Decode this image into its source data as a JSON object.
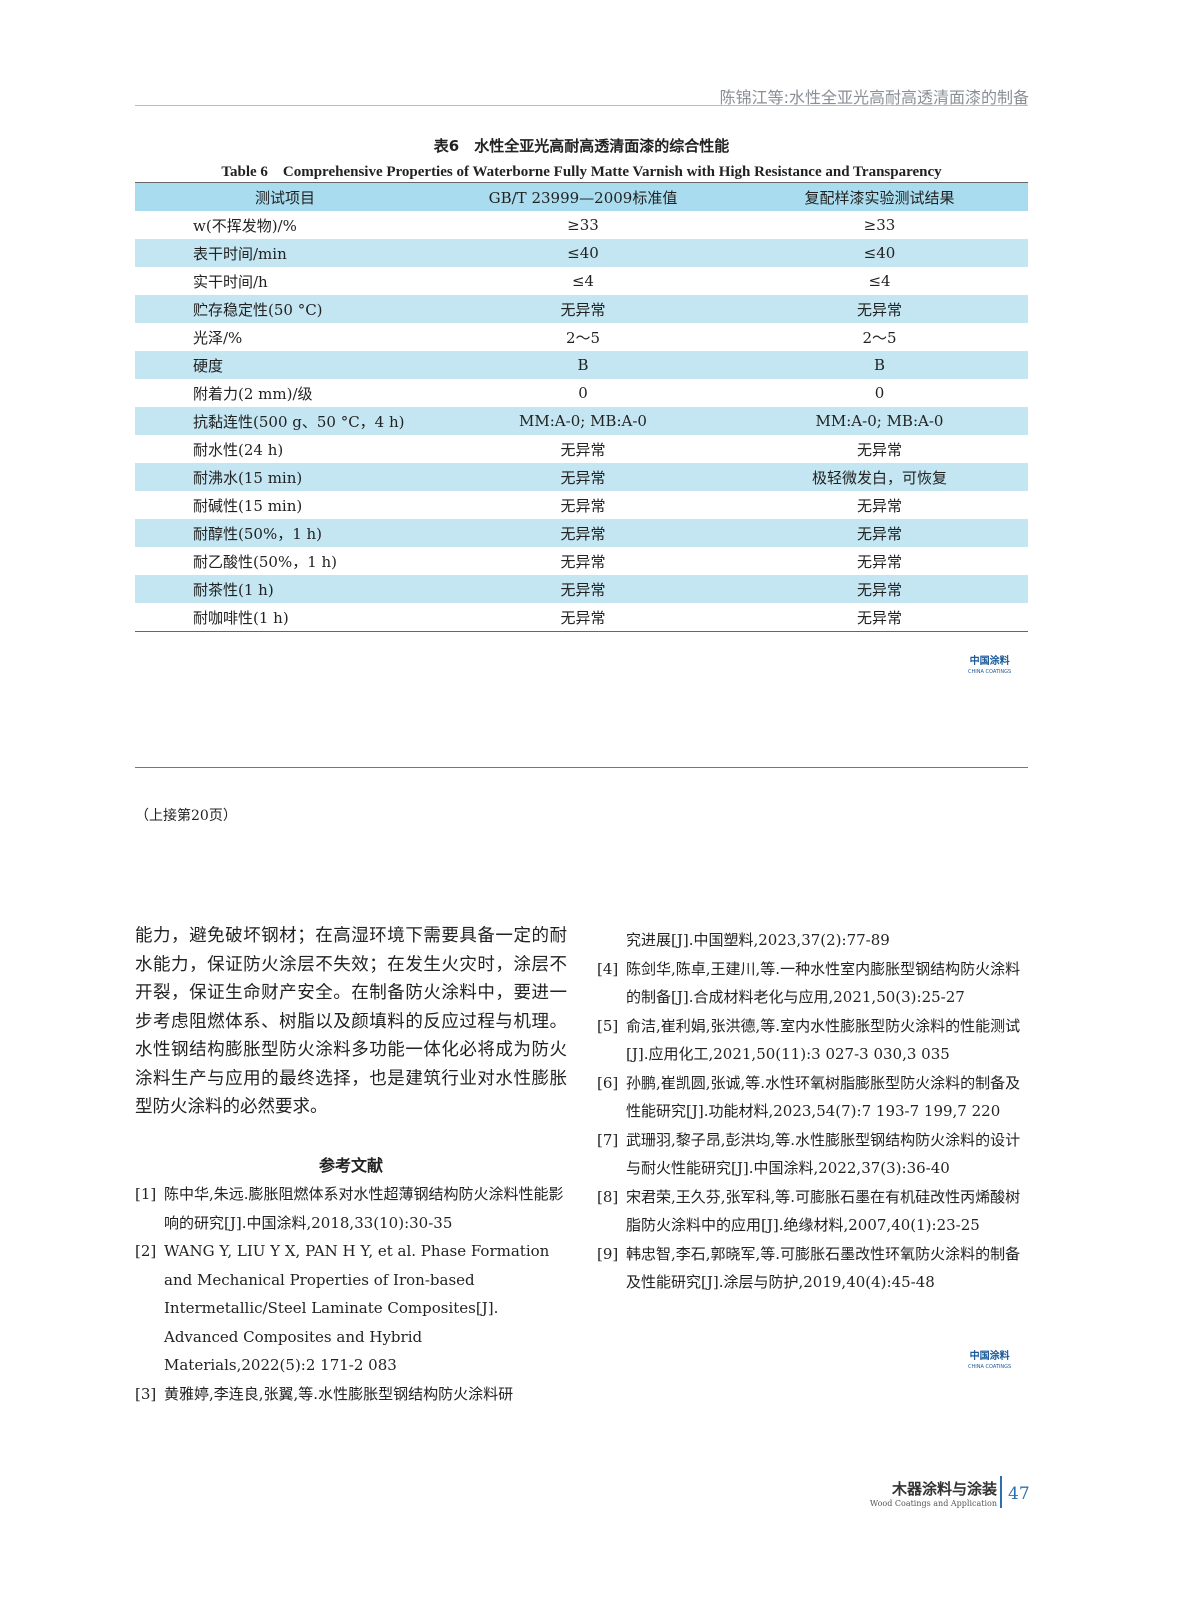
{
  "running_head": "陈锦江等:水性全亚光高耐高透清面漆的制备",
  "table": {
    "caption_cn": "表6　水性全亚光高耐高透清面漆的综合性能",
    "caption_en": "Table 6　Comprehensive Properties of Waterborne Fully Matte Varnish with High Resistance and Transparency",
    "headers": [
      "测试项目",
      "GB/T 23999—2009标准值",
      "复配样漆实验测试结果"
    ],
    "rows": [
      [
        "w(不挥发物)/%",
        "≥33",
        "≥33"
      ],
      [
        "表干时间/min",
        "≤40",
        "≤40"
      ],
      [
        "实干时间/h",
        "≤4",
        "≤4"
      ],
      [
        "贮存稳定性(50 °C)",
        "无异常",
        "无异常"
      ],
      [
        "光泽/%",
        "2～5",
        "2～5"
      ],
      [
        "硬度",
        "B",
        "B"
      ],
      [
        "附着力(2 mm)/级",
        "0",
        "0"
      ],
      [
        "抗黏连性(500 g、50 °C，4 h)",
        "MM:A-0; MB:A-0",
        "MM:A-0; MB:A-0"
      ],
      [
        "耐水性(24 h)",
        "无异常",
        "无异常"
      ],
      [
        "耐沸水(15 min)",
        "无异常",
        "极轻微发白，可恢复"
      ],
      [
        "耐碱性(15 min)",
        "无异常",
        "无异常"
      ],
      [
        "耐醇性(50%，1 h)",
        "无异常",
        "无异常"
      ],
      [
        "耐乙酸性(50%，1 h)",
        "无异常",
        "无异常"
      ],
      [
        "耐茶性(1 h)",
        "无异常",
        "无异常"
      ],
      [
        "耐咖啡性(1 h)",
        "无异常",
        "无异常"
      ]
    ]
  },
  "logo": {
    "cn": "中国涂料",
    "en": "CHINA COATINGS"
  },
  "continued": "（上接第20页）",
  "body_text": "能力，避免破坏钢材；在高湿环境下需要具备一定的耐水能力，保证防火涂层不失效；在发生火灾时，涂层不开裂，保证生命财产安全。在制备防火涂料中，要进一步考虑阻燃体系、树脂以及颜填料的反应过程与机理。水性钢结构膨胀型防火涂料多功能一体化必将成为防火涂料生产与应用的最终选择，也是建筑行业对水性膨胀型防火涂料的必然要求。",
  "references_heading": "参考文献",
  "references_left": [
    {
      "n": "[1]",
      "t": "陈中华,朱远.膨胀阻燃体系对水性超薄钢结构防火涂料性能影响的研究[J].中国涂料,2018,33(10):30-35"
    },
    {
      "n": "[2]",
      "t": "WANG Y, LIU Y X, PAN H Y, et al. Phase Formation and Mechanical Properties of Iron-based Intermetallic/Steel Laminate Composites[J]. Advanced Composites and Hybrid Materials,2022(5):2 171-2 083"
    },
    {
      "n": "[3]",
      "t": "黄雅婷,李连良,张翼,等.水性膨胀型钢结构防火涂料研"
    }
  ],
  "references_right": [
    {
      "n": "",
      "t": "究进展[J].中国塑料,2023,37(2):77-89"
    },
    {
      "n": "[4]",
      "t": "陈剑华,陈卓,王建川,等.一种水性室内膨胀型钢结构防火涂料的制备[J].合成材料老化与应用,2021,50(3):25-27"
    },
    {
      "n": "[5]",
      "t": "俞洁,崔利娟,张洪德,等.室内水性膨胀型防火涂料的性能测试[J].应用化工,2021,50(11):3 027-3 030,3 035"
    },
    {
      "n": "[6]",
      "t": "孙鹏,崔凯圆,张诚,等.水性环氧树脂膨胀型防火涂料的制备及性能研究[J].功能材料,2023,54(7):7 193-7 199,7 220"
    },
    {
      "n": "[7]",
      "t": "武珊羽,黎子昂,彭洪均,等.水性膨胀型钢结构防火涂料的设计与耐火性能研究[J].中国涂料,2022,37(3):36-40"
    },
    {
      "n": "[8]",
      "t": "宋君荣,王久芬,张军科,等.可膨胀石墨在有机硅改性丙烯酸树脂防火涂料中的应用[J].绝缘材料,2007,40(1):23-25"
    },
    {
      "n": "[9]",
      "t": "韩忠智,李石,郭晓军,等.可膨胀石墨改性环氧防火涂料的制备及性能研究[J].涂层与防护,2019,40(4):45-48"
    }
  ],
  "footer": {
    "journal_cn": "木器涂料与涂装",
    "journal_en": "Wood Coatings and Application",
    "page": "47"
  }
}
